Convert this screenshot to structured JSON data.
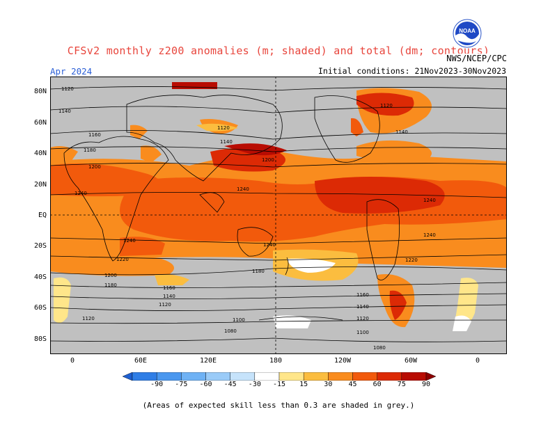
{
  "title": "CFSv2 monthly z200 anomalies (m; shaded) and total (dm; contours)",
  "period": "Apr 2024",
  "initial_conditions": "Initial conditions: 21Nov2023-30Nov2023",
  "agency": "NWS/NCEP/CPC",
  "logo_text": "NOAA",
  "x_ticks": [
    "0",
    "60E",
    "120E",
    "180",
    "120W",
    "60W",
    "0"
  ],
  "y_ticks": [
    "80N",
    "60N",
    "40N",
    "20N",
    "EQ",
    "20S",
    "40S",
    "60S",
    "80S"
  ],
  "colorbar": {
    "labels": [
      "-90",
      "-75",
      "-60",
      "-45",
      "-30",
      "-15",
      "15",
      "30",
      "45",
      "60",
      "75",
      "90"
    ],
    "colors": [
      "#1e5fd0",
      "#2f7ee6",
      "#4a97ef",
      "#6fb2f5",
      "#9acbf8",
      "#c6e3fb",
      "#ffffff",
      "#ffe68a",
      "#fbbd3f",
      "#f98c1e",
      "#f25a0c",
      "#dc2a05",
      "#b80c02",
      "#8d0000"
    ]
  },
  "skill_note": "(Areas of expected skill less than 0.3 are shaded in grey.)",
  "contour_labels": [
    "1080",
    "1100",
    "1120",
    "1140",
    "1160",
    "1180",
    "1200",
    "1220",
    "1240"
  ],
  "colors": {
    "grey_mask": "#c0c0c0",
    "title": "#e8453c",
    "period": "#2b5fd6"
  }
}
